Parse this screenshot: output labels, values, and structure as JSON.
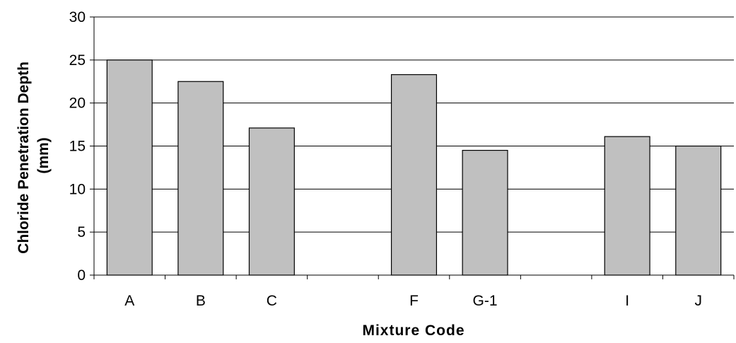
{
  "chart_data": {
    "type": "bar",
    "categories": [
      "A",
      "B",
      "C",
      "",
      "F",
      "G-1",
      "",
      "I",
      "J"
    ],
    "values": [
      25.0,
      22.5,
      17.1,
      null,
      23.3,
      14.5,
      null,
      16.1,
      15.0
    ],
    "title": "",
    "xlabel": "Mixture Code",
    "ylabel_line1": "Chloride Penetration Depth",
    "ylabel_line2": "(mm)",
    "ylim": [
      0,
      30
    ],
    "yticks": [
      0,
      5,
      10,
      15,
      20,
      25,
      30
    ],
    "grid": true,
    "legend": "none",
    "bar_color": "#c0c0c0",
    "bar_edge_color": "#000000"
  }
}
